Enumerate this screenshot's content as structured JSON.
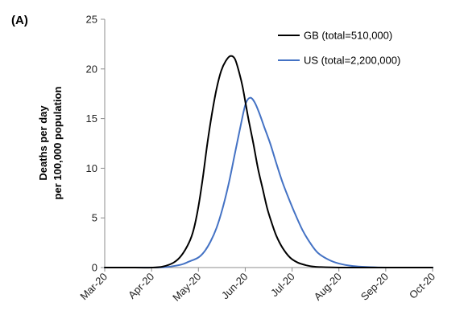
{
  "chart_data": {
    "type": "line",
    "panel_label": "(A)",
    "ylabel_line1": "Deaths per day",
    "ylabel_line2": "per 100,000 population",
    "xlabel": "",
    "ylim": [
      0,
      25
    ],
    "yticks": [
      0,
      5,
      10,
      15,
      20,
      25
    ],
    "xlim": [
      "2020-03-01",
      "2020-10-01"
    ],
    "xticks": [
      "Mar-20",
      "Apr-20",
      "May-20",
      "Jun-20",
      "Jul-20",
      "Aug-20",
      "Sep-20",
      "Oct-20"
    ],
    "grid": false,
    "legend_position": "top-right",
    "series": [
      {
        "name": "GB (total=510,000)",
        "color": "#000000",
        "x": [
          "2020-03-01",
          "2020-03-15",
          "2020-04-01",
          "2020-04-08",
          "2020-04-15",
          "2020-04-20",
          "2020-04-25",
          "2020-04-28",
          "2020-05-01",
          "2020-05-04",
          "2020-05-07",
          "2020-05-10",
          "2020-05-13",
          "2020-05-16",
          "2020-05-19",
          "2020-05-22",
          "2020-05-25",
          "2020-05-28",
          "2020-05-30",
          "2020-06-01",
          "2020-06-03",
          "2020-06-06",
          "2020-06-09",
          "2020-06-12",
          "2020-06-15",
          "2020-06-18",
          "2020-06-21",
          "2020-06-25",
          "2020-06-30",
          "2020-07-05",
          "2020-07-10",
          "2020-07-15",
          "2020-07-20",
          "2020-08-01",
          "2020-08-15",
          "2020-09-01",
          "2020-10-01"
        ],
        "values": [
          0,
          0,
          0,
          0.1,
          0.5,
          1.2,
          2.5,
          3.8,
          6.0,
          9.0,
          12.5,
          15.5,
          18.0,
          19.8,
          20.8,
          21.3,
          21.0,
          19.5,
          18.2,
          16.5,
          14.8,
          12.5,
          10.0,
          8.0,
          6.0,
          4.5,
          3.2,
          2.0,
          1.0,
          0.5,
          0.25,
          0.1,
          0.05,
          0,
          0,
          0,
          0
        ]
      },
      {
        "name": "US (total=2,200,000)",
        "color": "#4472c4",
        "x": [
          "2020-03-01",
          "2020-03-15",
          "2020-04-01",
          "2020-04-10",
          "2020-04-20",
          "2020-04-25",
          "2020-05-01",
          "2020-05-05",
          "2020-05-09",
          "2020-05-13",
          "2020-05-17",
          "2020-05-21",
          "2020-05-25",
          "2020-05-29",
          "2020-06-01",
          "2020-06-04",
          "2020-06-07",
          "2020-06-10",
          "2020-06-13",
          "2020-06-17",
          "2020-06-21",
          "2020-06-25",
          "2020-06-29",
          "2020-07-03",
          "2020-07-08",
          "2020-07-13",
          "2020-07-18",
          "2020-07-25",
          "2020-08-01",
          "2020-08-10",
          "2020-08-20",
          "2020-09-01",
          "2020-10-01"
        ],
        "values": [
          0,
          0,
          0,
          0.05,
          0.3,
          0.6,
          1.0,
          1.6,
          2.6,
          4.0,
          6.0,
          8.5,
          11.5,
          14.5,
          16.5,
          17.1,
          16.6,
          15.5,
          14.2,
          12.5,
          10.5,
          8.6,
          7.0,
          5.5,
          3.8,
          2.5,
          1.5,
          0.8,
          0.4,
          0.15,
          0.05,
          0,
          0
        ]
      }
    ]
  }
}
